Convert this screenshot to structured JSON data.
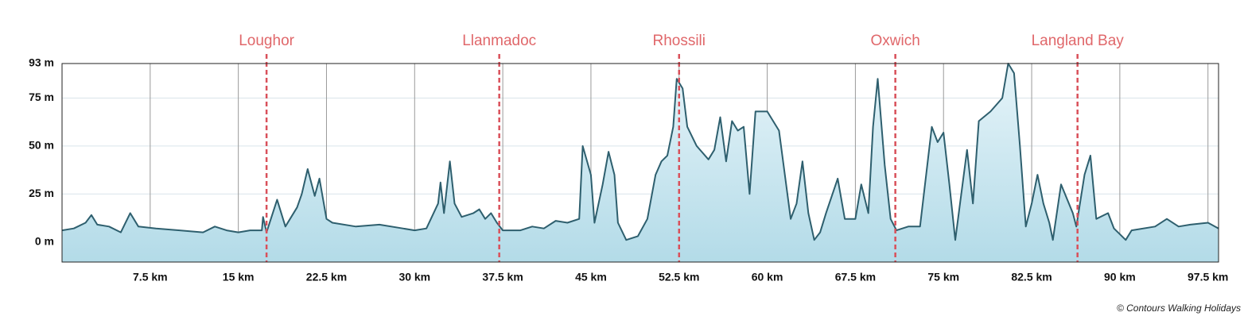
{
  "chart_data": {
    "type": "area",
    "credit": "© Contours Walking Holidays",
    "color": "#2e5f6e",
    "x": [
      0,
      1,
      2,
      2.5,
      3,
      4,
      5,
      5.8,
      6.5,
      8,
      10,
      12,
      13,
      14,
      15,
      16,
      17,
      17.1,
      17.4,
      18.3,
      19,
      20,
      20.4,
      20.9,
      21.5,
      21.9,
      22.5,
      23,
      25,
      27,
      29,
      30,
      31,
      32,
      32.2,
      32.5,
      33,
      33.4,
      34,
      35,
      35.5,
      36,
      36.5,
      37,
      37.5,
      39,
      40,
      41,
      42,
      43,
      44,
      44.3,
      45,
      45.3,
      46,
      46.5,
      47,
      47.3,
      48,
      49,
      49.8,
      50.5,
      51,
      51.5,
      52,
      52.3,
      52.8,
      53.2,
      54,
      55,
      55.5,
      56,
      56.5,
      57,
      57.5,
      58,
      58.5,
      59,
      60,
      61,
      62,
      62.5,
      63,
      63.5,
      64,
      64.5,
      65,
      66,
      66.6,
      67.5,
      68,
      68.6,
      69,
      69.4,
      70,
      70.5,
      71,
      72,
      73,
      74,
      74.5,
      75,
      75.5,
      76,
      77,
      77.5,
      78,
      79,
      80,
      80.5,
      81,
      81.5,
      82,
      82.5,
      83,
      83.5,
      84,
      84.3,
      85,
      86,
      86.3,
      87,
      87.5,
      88,
      89,
      89.5,
      90.5,
      91,
      93,
      94,
      95,
      96,
      97.5,
      98.4
    ],
    "values": [
      6,
      7,
      10,
      14,
      9,
      8,
      5,
      15,
      8,
      7,
      6,
      5,
      8,
      6,
      5,
      6,
      6,
      13,
      5,
      22,
      8,
      18,
      25,
      38,
      24,
      33,
      12,
      10,
      8,
      9,
      7,
      6,
      7,
      20,
      31,
      15,
      42,
      20,
      13,
      15,
      17,
      12,
      15,
      10,
      6,
      6,
      8,
      7,
      11,
      10,
      12,
      50,
      35,
      10,
      30,
      47,
      35,
      10,
      1,
      3,
      12,
      35,
      42,
      45,
      60,
      85,
      80,
      60,
      50,
      43,
      48,
      65,
      42,
      63,
      58,
      60,
      25,
      68,
      68,
      58,
      12,
      20,
      42,
      15,
      1,
      5,
      15,
      33,
      12,
      12,
      30,
      15,
      60,
      85,
      40,
      12,
      6,
      8,
      8,
      60,
      52,
      57,
      30,
      1,
      48,
      20,
      63,
      68,
      75,
      93,
      88,
      50,
      8,
      20,
      35,
      20,
      10,
      1,
      30,
      15,
      8,
      35,
      45,
      12,
      15,
      7,
      1,
      6,
      8,
      12,
      8,
      9,
      10,
      7
    ],
    "xlim": [
      0,
      98.4
    ],
    "ylim": [
      -10.5,
      93
    ],
    "xticks": [
      {
        "value": 7.5,
        "label": "7.5 km"
      },
      {
        "value": 15,
        "label": "15 km"
      },
      {
        "value": 22.5,
        "label": "22.5 km"
      },
      {
        "value": 30,
        "label": "30 km"
      },
      {
        "value": 37.5,
        "label": "37.5 km"
      },
      {
        "value": 45,
        "label": "45 km"
      },
      {
        "value": 52.5,
        "label": "52.5 km"
      },
      {
        "value": 60,
        "label": "60 km"
      },
      {
        "value": 67.5,
        "label": "67.5 km"
      },
      {
        "value": 75,
        "label": "75 km"
      },
      {
        "value": 82.5,
        "label": "82.5 km"
      },
      {
        "value": 90,
        "label": "90 km"
      },
      {
        "value": 97.5,
        "label": "97.5 km"
      }
    ],
    "yticks": [
      {
        "value": 0,
        "label": "0 m"
      },
      {
        "value": 25,
        "label": "25 m"
      },
      {
        "value": 50,
        "label": "50 m"
      },
      {
        "value": 75,
        "label": "75 m"
      },
      {
        "value": 93,
        "label": "93 m"
      }
    ],
    "grid": true,
    "annotations": [
      {
        "label": "Loughor",
        "x": 17.4
      },
      {
        "label": "Llanmadoc",
        "x": 37.2
      },
      {
        "label": "Rhossili",
        "x": 52.5
      },
      {
        "label": "Oxwich",
        "x": 70.9
      },
      {
        "label": "Langland Bay",
        "x": 86.4
      }
    ]
  }
}
